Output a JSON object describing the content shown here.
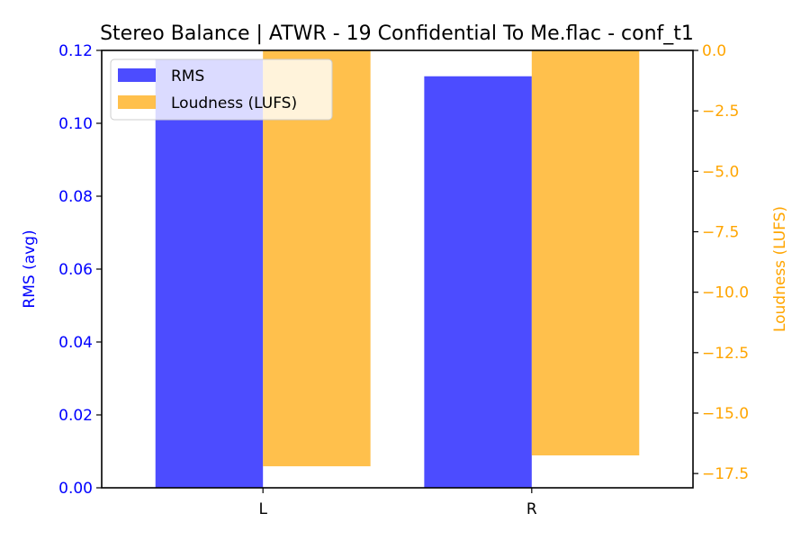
{
  "chart_data": {
    "type": "bar",
    "title": "Stereo Balance | ATWR - 19 Confidential To Me.flac - conf_t1",
    "categories": [
      "L",
      "R"
    ],
    "xlabel": "",
    "series": [
      {
        "name": "RMS",
        "axis": "left",
        "color": "#0000ff",
        "alpha": 0.7,
        "values": [
          0.1175,
          0.1129
        ]
      },
      {
        "name": "Loudness (LUFS)",
        "axis": "right",
        "color": "#ffa500",
        "alpha": 0.7,
        "values": [
          -17.2,
          -16.75
        ]
      }
    ],
    "left_axis": {
      "label": "RMS (avg)",
      "color": "#0000ff",
      "ylim": [
        0.0,
        0.12
      ],
      "ticks": [
        "0.00",
        "0.02",
        "0.04",
        "0.06",
        "0.08",
        "0.10",
        "0.12"
      ]
    },
    "right_axis": {
      "label": "Loudness (LUFS)",
      "color": "#ffa500",
      "ylim": [
        -18.09,
        0.0
      ],
      "ticks": [
        "0.0",
        "−2.5",
        "−5.0",
        "−7.5",
        "−10.0",
        "−12.5",
        "−15.0",
        "−17.5"
      ]
    },
    "legend": {
      "position": "upper left",
      "entries": [
        "RMS",
        "Loudness (LUFS)"
      ]
    },
    "grid": false
  }
}
